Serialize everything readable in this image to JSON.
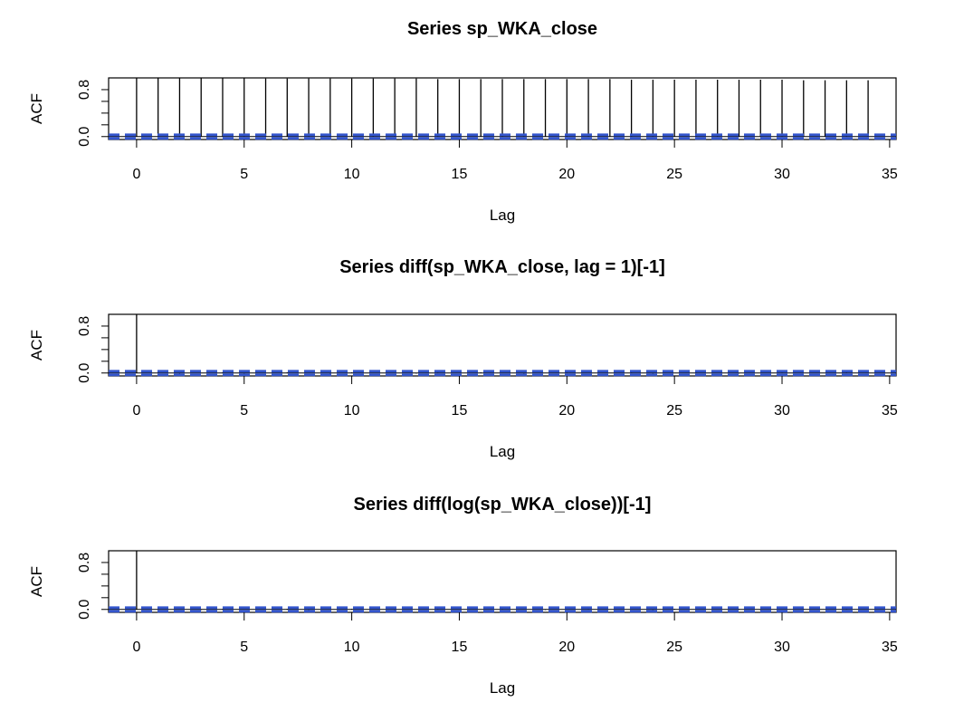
{
  "chart_data": [
    {
      "type": "bar",
      "title": "Series  sp_WKA_close",
      "xlabel": "Lag",
      "ylabel": "ACF",
      "xlim": [
        -1.3,
        35.3
      ],
      "ylim": [
        -0.05,
        1.0
      ],
      "x_ticks": [
        "0",
        "5",
        "10",
        "15",
        "20",
        "25",
        "30",
        "35"
      ],
      "y_ticks": [
        "0.0",
        "0.8"
      ],
      "confidence_band": 0.03,
      "lags": [
        0,
        1,
        2,
        3,
        4,
        5,
        6,
        7,
        8,
        9,
        10,
        11,
        12,
        13,
        14,
        15,
        16,
        17,
        18,
        19,
        20,
        21,
        22,
        23,
        24,
        25,
        26,
        27,
        28,
        29,
        30,
        31,
        32,
        33,
        34
      ],
      "values": [
        1.0,
        1.0,
        1.0,
        1.0,
        1.0,
        1.0,
        0.99,
        0.99,
        0.99,
        0.99,
        0.99,
        0.99,
        0.99,
        0.99,
        0.98,
        0.98,
        0.98,
        0.98,
        0.98,
        0.98,
        0.98,
        0.98,
        0.98,
        0.97,
        0.97,
        0.97,
        0.97,
        0.97,
        0.97,
        0.97,
        0.97,
        0.96,
        0.96,
        0.96,
        0.96
      ],
      "bar_color": "#000000",
      "band_color": "#3355cc"
    },
    {
      "type": "bar",
      "title": "Series  diff(sp_WKA_close, lag = 1)[-1]",
      "xlabel": "Lag",
      "ylabel": "ACF",
      "xlim": [
        -1.3,
        35.3
      ],
      "ylim": [
        -0.05,
        1.0
      ],
      "x_ticks": [
        "0",
        "5",
        "10",
        "15",
        "20",
        "25",
        "30",
        "35"
      ],
      "y_ticks": [
        "0.0",
        "0.8"
      ],
      "confidence_band": 0.03,
      "lags": [
        0,
        1,
        2,
        3,
        4,
        5,
        6,
        7,
        8,
        9,
        10,
        11,
        12,
        13,
        14,
        15,
        16,
        17,
        18,
        19,
        20,
        21,
        22,
        23,
        24,
        25,
        26,
        27,
        28,
        29,
        30,
        31,
        32,
        33,
        34
      ],
      "values": [
        1.0,
        0.01,
        -0.01,
        0.0,
        0.01,
        -0.01,
        0.0,
        0.01,
        0.0,
        -0.01,
        0.01,
        0.0,
        0.0,
        -0.01,
        0.01,
        0.0,
        0.01,
        0.0,
        -0.01,
        0.0,
        0.01,
        0.0,
        0.0,
        0.01,
        -0.01,
        0.0,
        0.01,
        0.0,
        -0.01,
        0.0,
        0.01,
        0.0,
        0.0,
        0.02,
        0.0
      ],
      "bar_color": "#000000",
      "band_color": "#3355cc"
    },
    {
      "type": "bar",
      "title": "Series  diff(log(sp_WKA_close))[-1]",
      "xlabel": "Lag",
      "ylabel": "ACF",
      "xlim": [
        -1.3,
        35.3
      ],
      "ylim": [
        -0.05,
        1.0
      ],
      "x_ticks": [
        "0",
        "5",
        "10",
        "15",
        "20",
        "25",
        "30",
        "35"
      ],
      "y_ticks": [
        "0.0",
        "0.8"
      ],
      "confidence_band": 0.03,
      "lags": [
        0,
        1,
        2,
        3,
        4,
        5,
        6,
        7,
        8,
        9,
        10,
        11,
        12,
        13,
        14,
        15,
        16,
        17,
        18,
        19,
        20,
        21,
        22,
        23,
        24,
        25,
        26,
        27,
        28,
        29,
        30,
        31,
        32,
        33,
        34
      ],
      "values": [
        1.0,
        0.01,
        0.0,
        -0.01,
        0.01,
        0.0,
        0.0,
        0.01,
        -0.01,
        0.0,
        0.01,
        0.0,
        -0.01,
        0.0,
        0.01,
        0.0,
        0.0,
        0.01,
        0.0,
        -0.01,
        0.0,
        0.01,
        0.0,
        0.0,
        -0.01,
        0.01,
        0.0,
        0.0,
        0.01,
        -0.01,
        0.0,
        0.01,
        0.0,
        0.01,
        0.0
      ],
      "bar_color": "#000000",
      "band_color": "#3355cc"
    }
  ]
}
